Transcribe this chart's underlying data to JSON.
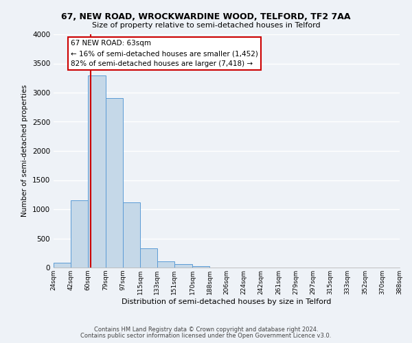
{
  "title": "67, NEW ROAD, WROCKWARDINE WOOD, TELFORD, TF2 7AA",
  "subtitle": "Size of property relative to semi-detached houses in Telford",
  "xlabel": "Distribution of semi-detached houses by size in Telford",
  "ylabel": "Number of semi-detached properties",
  "bin_edges": [
    24,
    42,
    60,
    79,
    97,
    115,
    133,
    151,
    170,
    188,
    206,
    224,
    242,
    261,
    279,
    297,
    315,
    333,
    352,
    370,
    388
  ],
  "bar_heights": [
    80,
    1150,
    3300,
    2900,
    1120,
    330,
    110,
    60,
    20,
    5,
    3,
    2,
    1,
    0,
    0,
    0,
    0,
    0,
    0,
    0
  ],
  "bar_color": "#c5d8e8",
  "bar_edge_color": "#5b9bd5",
  "property_value": 63,
  "vline_color": "#cc0000",
  "annotation_title": "67 NEW ROAD: 63sqm",
  "annotation_line1": "← 16% of semi-detached houses are smaller (1,452)",
  "annotation_line2": "82% of semi-detached houses are larger (7,418) →",
  "annotation_box_color": "#cc0000",
  "ylim": [
    0,
    4000
  ],
  "yticks": [
    0,
    500,
    1000,
    1500,
    2000,
    2500,
    3000,
    3500,
    4000
  ],
  "tick_labels": [
    "24sqm",
    "42sqm",
    "60sqm",
    "79sqm",
    "97sqm",
    "115sqm",
    "133sqm",
    "151sqm",
    "170sqm",
    "188sqm",
    "206sqm",
    "224sqm",
    "242sqm",
    "261sqm",
    "279sqm",
    "297sqm",
    "315sqm",
    "333sqm",
    "352sqm",
    "370sqm",
    "388sqm"
  ],
  "footer_line1": "Contains HM Land Registry data © Crown copyright and database right 2024.",
  "footer_line2": "Contains public sector information licensed under the Open Government Licence v3.0.",
  "bg_color": "#eef2f7",
  "grid_color": "#ffffff"
}
